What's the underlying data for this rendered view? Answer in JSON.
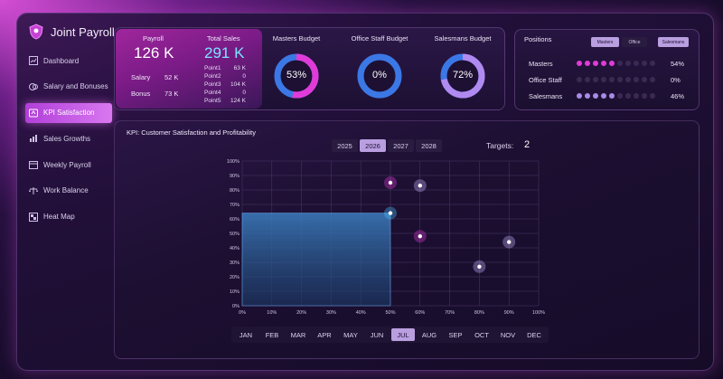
{
  "app": {
    "title": "Joint Payroll"
  },
  "sidebar": {
    "items": [
      {
        "label": "Dashboard",
        "icon": "dashboard-icon"
      },
      {
        "label": "Salary and Bonuses",
        "icon": "money-icon"
      },
      {
        "label": "KPI Satisfaction",
        "icon": "thumbs-up-icon",
        "active": true
      },
      {
        "label": "Sales Growths",
        "icon": "bar-chart-icon"
      },
      {
        "label": "Weekly Payroll",
        "icon": "calendar-icon"
      },
      {
        "label": "Work Balance",
        "icon": "scales-icon"
      },
      {
        "label": "Heat Map",
        "icon": "heatmap-icon"
      }
    ]
  },
  "payroll": {
    "title": "Payroll",
    "value": "126 K",
    "salary_label": "Salary",
    "salary_value": "52 K",
    "bonus_label": "Bonus",
    "bonus_value": "73 K"
  },
  "total_sales": {
    "title": "Total Sales",
    "value": "291 K",
    "points": [
      {
        "label": "Point1",
        "value": "63 K"
      },
      {
        "label": "Point2",
        "value": "0"
      },
      {
        "label": "Point3",
        "value": "104 K"
      },
      {
        "label": "Point4",
        "value": "0"
      },
      {
        "label": "Point5",
        "value": "124 K"
      }
    ]
  },
  "budgets": [
    {
      "title": "Masters Budget",
      "percent": 53,
      "text": "53%",
      "color": "#e03bd8"
    },
    {
      "title": "Office Staff Budget",
      "percent": 0,
      "text": "0%",
      "color": "#3aa0ff"
    },
    {
      "title": "Salesmans Budget",
      "percent": 72,
      "text": "72%",
      "color": "#b08af0"
    }
  ],
  "positions": {
    "title": "Positions",
    "tabs": [
      "Masters",
      "Office",
      "Salesmans"
    ],
    "rows": [
      {
        "label": "Masters",
        "value": "54%",
        "filled": 5,
        "total": 10,
        "color": "#e03bd8"
      },
      {
        "label": "Office Staff",
        "value": "0%",
        "filled": 0,
        "total": 10,
        "color": "#3aa0ff"
      },
      {
        "label": "Salesmans",
        "value": "46%",
        "filled": 5,
        "total": 10,
        "color": "#a98ae6"
      }
    ]
  },
  "kpi": {
    "title": "KPI: Customer Satisfaction and Profitability",
    "years": [
      "2025",
      "2026",
      "2027",
      "2028"
    ],
    "active_year": "2026",
    "targets_label": "Targets:",
    "targets_value": "2",
    "months": [
      "JAN",
      "FEB",
      "MAR",
      "APR",
      "MAY",
      "JUN",
      "JUL",
      "AUG",
      "SEP",
      "OCT",
      "NOV",
      "DEC"
    ],
    "active_month": "JUL"
  },
  "chart_data": {
    "type": "scatter",
    "x_ticks": [
      "0%",
      "10%",
      "20%",
      "30%",
      "40%",
      "50%",
      "60%",
      "70%",
      "80%",
      "90%",
      "100%"
    ],
    "y_ticks": [
      "0%",
      "10%",
      "20%",
      "30%",
      "40%",
      "50%",
      "60%",
      "70%",
      "80%",
      "90%",
      "100%"
    ],
    "xlim": [
      0,
      100
    ],
    "ylim": [
      0,
      100
    ],
    "grid": true,
    "area": {
      "x": 50,
      "y": 64,
      "color": "#3a78b8"
    },
    "points": [
      {
        "x": 50,
        "y": 64,
        "color": "#4fc3ff"
      },
      {
        "x": 50,
        "y": 85,
        "color": "#e03bd8"
      },
      {
        "x": 60,
        "y": 83,
        "color": "#c9b8ff"
      },
      {
        "x": 60,
        "y": 48,
        "color": "#e03bd8"
      },
      {
        "x": 80,
        "y": 27,
        "color": "#c9b8ff"
      },
      {
        "x": 90,
        "y": 44,
        "color": "#c9b8ff"
      }
    ]
  }
}
